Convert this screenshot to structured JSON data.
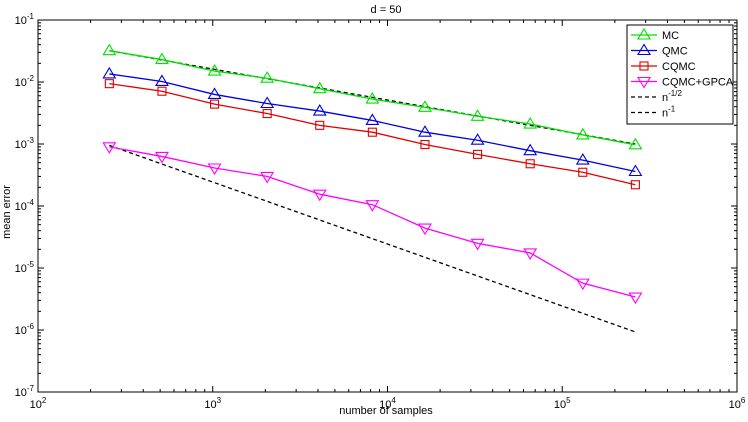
{
  "chart_data": {
    "type": "line",
    "title": "d = 50",
    "xlabel": "number of samples",
    "ylabel": "mean error",
    "xscale": "log",
    "yscale": "log",
    "xlim": [
      100,
      1000000
    ],
    "ylim": [
      1e-07,
      0.1
    ],
    "grid": false,
    "legend_position": "top-right",
    "x": [
      256,
      512,
      1024,
      2048,
      4096,
      8192,
      16384,
      32768,
      65536,
      131072,
      262144
    ],
    "x_ticks": [
      {
        "value": 100,
        "base": "10",
        "exp": "2"
      },
      {
        "value": 1000,
        "base": "10",
        "exp": "3"
      },
      {
        "value": 10000,
        "base": "10",
        "exp": "4"
      },
      {
        "value": 100000,
        "base": "10",
        "exp": "5"
      },
      {
        "value": 1000000,
        "base": "10",
        "exp": "6"
      }
    ],
    "y_ticks": [
      {
        "value": 1e-07,
        "base": "10",
        "exp": "-7"
      },
      {
        "value": 1e-06,
        "base": "10",
        "exp": "-6"
      },
      {
        "value": 1e-05,
        "base": "10",
        "exp": "-5"
      },
      {
        "value": 0.0001,
        "base": "10",
        "exp": "-4"
      },
      {
        "value": 0.001,
        "base": "10",
        "exp": "-3"
      },
      {
        "value": 0.01,
        "base": "10",
        "exp": "-2"
      },
      {
        "value": 0.1,
        "base": "10",
        "exp": "-1"
      }
    ],
    "series": [
      {
        "name": "MC",
        "color": "#00e000",
        "marker": "triangle-up",
        "values": [
          0.032,
          0.023,
          0.015,
          0.0115,
          0.0078,
          0.0053,
          0.0039,
          0.0028,
          0.0021,
          0.0014,
          0.00097
        ]
      },
      {
        "name": "QMC",
        "color": "#0000e0",
        "marker": "triangle-up",
        "values": [
          0.0135,
          0.0102,
          0.0063,
          0.0045,
          0.0034,
          0.0024,
          0.00155,
          0.00115,
          0.00078,
          0.00055,
          0.00036
        ]
      },
      {
        "name": "CQMC",
        "color": "#e00000",
        "marker": "square",
        "values": [
          0.0094,
          0.0071,
          0.0044,
          0.0031,
          0.002,
          0.00155,
          0.00098,
          0.00068,
          0.00048,
          0.00035,
          0.00022
        ]
      },
      {
        "name": "CQMC+GPCA",
        "color": "#ff00ff",
        "marker": "triangle-down",
        "values": [
          0.0009,
          0.00063,
          0.00041,
          0.0003,
          0.000155,
          0.000105,
          4.4e-05,
          2.5e-05,
          1.75e-05,
          5.7e-06,
          3.4e-06
        ]
      }
    ],
    "reference_lines": [
      {
        "name_base": "n",
        "name_exp": "-1/2",
        "color": "#000000",
        "style": "dashed",
        "x": [
          256,
          262144
        ],
        "values": [
          0.032,
          0.001
        ]
      },
      {
        "name_base": "n",
        "name_exp": "-1",
        "color": "#000000",
        "style": "dashed",
        "x": [
          256,
          262144
        ],
        "values": [
          0.00095,
          9.3e-07
        ]
      }
    ]
  }
}
